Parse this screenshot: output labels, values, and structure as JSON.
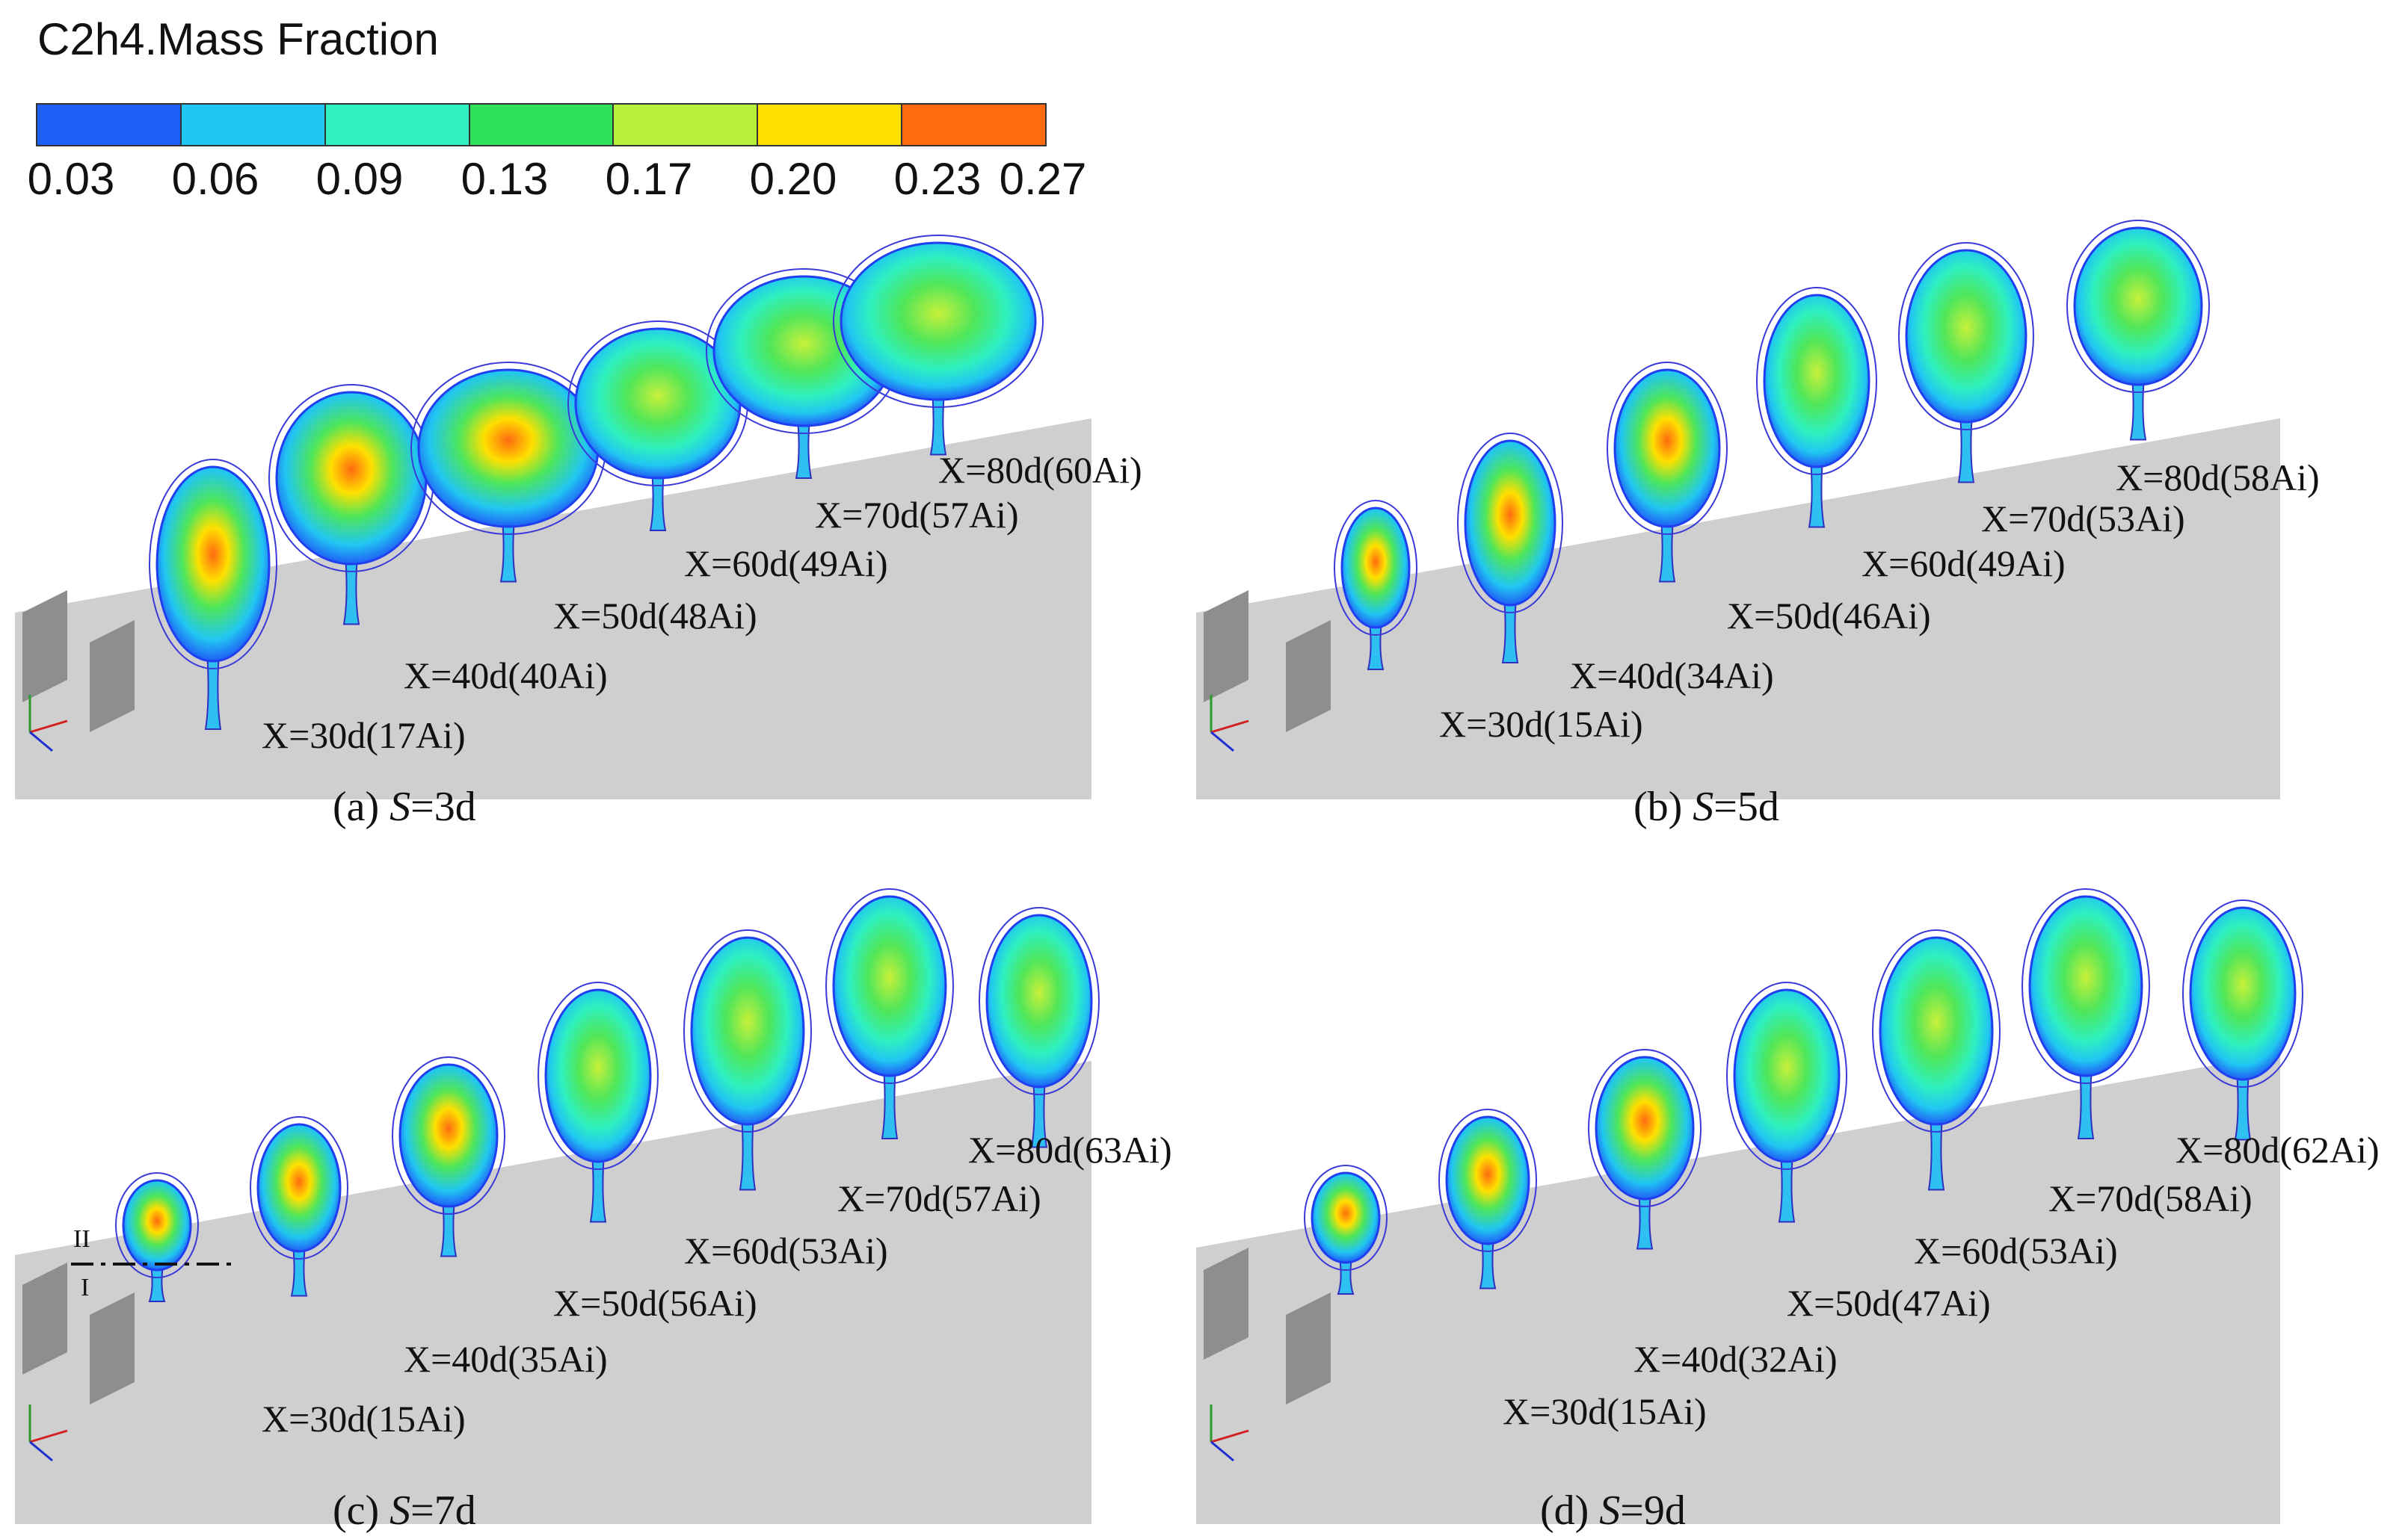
{
  "legend": {
    "title": "C2h4.Mass Fraction",
    "ticks": [
      "0.03",
      "0.06",
      "0.09",
      "0.13",
      "0.17",
      "0.20",
      "0.23",
      "0.27"
    ],
    "colors": [
      "#1f5ff5",
      "#21c6f2",
      "#2ef0c0",
      "#2ee05a",
      "#b6f03a",
      "#ffe000",
      "#ff6a10"
    ]
  },
  "panels": [
    {
      "id": "a",
      "letter": "(a)",
      "s_label": "S",
      "s_value": "=3d",
      "stations": [
        {
          "x": "X=30d",
          "a": "(17Ai)"
        },
        {
          "x": "X=40d",
          "a": "(40Ai)"
        },
        {
          "x": "X=50d",
          "a": "(48Ai)"
        },
        {
          "x": "X=60d",
          "a": "(49Ai)"
        },
        {
          "x": "X=70d",
          "a": "(57Ai)"
        },
        {
          "x": "X=80d",
          "a": "(60Ai)"
        }
      ]
    },
    {
      "id": "b",
      "letter": "(b)",
      "s_label": "S",
      "s_value": "=5d",
      "stations": [
        {
          "x": "X=30d",
          "a": "(15Ai)"
        },
        {
          "x": "X=40d",
          "a": "(34Ai)"
        },
        {
          "x": "X=50d",
          "a": "(46Ai)"
        },
        {
          "x": "X=60d",
          "a": "(49Ai)"
        },
        {
          "x": "X=70d",
          "a": "(53Ai)"
        },
        {
          "x": "X=80d",
          "a": "(58Ai)"
        }
      ]
    },
    {
      "id": "c",
      "letter": "(c)",
      "s_label": "S",
      "s_value": "=7d",
      "stations": [
        {
          "x": "X=30d",
          "a": "(15Ai)"
        },
        {
          "x": "X=40d",
          "a": "(35Ai)"
        },
        {
          "x": "X=50d",
          "a": "(56Ai)"
        },
        {
          "x": "X=60d",
          "a": "(53Ai)"
        },
        {
          "x": "X=70d",
          "a": "(57Ai)"
        },
        {
          "x": "X=80d",
          "a": "(63Ai)"
        }
      ],
      "section_labels": [
        "II",
        "I"
      ]
    },
    {
      "id": "d",
      "letter": "(d)",
      "s_label": "S",
      "s_value": "=9d",
      "stations": [
        {
          "x": "X=30d",
          "a": "(15Ai)"
        },
        {
          "x": "X=40d",
          "a": "(32Ai)"
        },
        {
          "x": "X=50d",
          "a": "(47Ai)"
        },
        {
          "x": "X=60d",
          "a": "(53Ai)"
        },
        {
          "x": "X=70d",
          "a": "(58Ai)"
        },
        {
          "x": "X=80d",
          "a": "(62Ai)"
        }
      ]
    }
  ]
}
